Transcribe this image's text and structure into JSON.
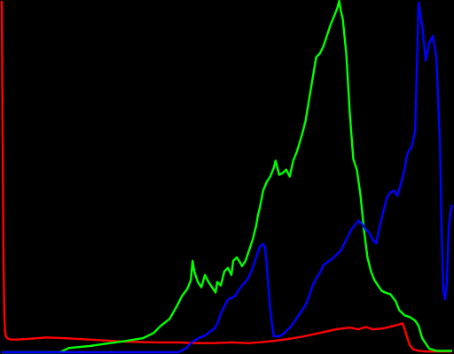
{
  "chart_data": {
    "type": "line",
    "title": "",
    "xlabel": "",
    "ylabel": "",
    "xlim": [
      0,
      255
    ],
    "ylim": [
      0,
      100
    ],
    "grid": false,
    "legend": "none",
    "background": "#000000",
    "series": [
      {
        "color": "#ff0000",
        "points": [
          [
            0,
            100
          ],
          [
            0.5,
            60
          ],
          [
            1,
            25
          ],
          [
            1.5,
            10
          ],
          [
            2,
            5
          ],
          [
            3,
            4
          ],
          [
            5,
            3.6
          ],
          [
            8,
            3.6
          ],
          [
            15,
            3.8
          ],
          [
            25,
            4.2
          ],
          [
            35,
            4
          ],
          [
            50,
            3.6
          ],
          [
            70,
            3
          ],
          [
            90,
            2.8
          ],
          [
            100,
            2.8
          ],
          [
            110,
            2.6
          ],
          [
            120,
            2.6
          ],
          [
            130,
            2.8
          ],
          [
            140,
            2.6
          ],
          [
            150,
            3
          ],
          [
            160,
            3.6
          ],
          [
            170,
            4.4
          ],
          [
            180,
            5.5
          ],
          [
            190,
            6.6
          ],
          [
            197,
            7
          ],
          [
            202,
            6.5
          ],
          [
            206,
            7.2
          ],
          [
            210,
            6.5
          ],
          [
            216,
            6.8
          ],
          [
            222,
            7.5
          ],
          [
            227,
            8.2
          ],
          [
            229,
            5
          ],
          [
            231,
            2
          ],
          [
            233,
            0.8
          ],
          [
            236,
            0.4
          ],
          [
            240,
            0.2
          ],
          [
            255,
            0.2
          ]
        ]
      },
      {
        "color": "#00ff00",
        "points": [
          [
            0,
            0
          ],
          [
            33,
            0
          ],
          [
            38,
            1.2
          ],
          [
            42,
            1.4
          ],
          [
            50,
            1.8
          ],
          [
            60,
            2.5
          ],
          [
            70,
            3.2
          ],
          [
            80,
            4
          ],
          [
            86,
            5.5
          ],
          [
            90,
            7.5
          ],
          [
            95,
            9.5
          ],
          [
            99,
            13
          ],
          [
            102,
            16
          ],
          [
            105,
            18
          ],
          [
            107,
            20.5
          ],
          [
            108,
            26
          ],
          [
            109,
            23
          ],
          [
            111,
            20
          ],
          [
            113,
            18.5
          ],
          [
            115,
            22
          ],
          [
            117,
            20
          ],
          [
            119,
            18.5
          ],
          [
            121,
            17
          ],
          [
            122,
            20
          ],
          [
            124,
            19
          ],
          [
            126,
            23
          ],
          [
            128,
            24
          ],
          [
            130,
            22
          ],
          [
            131,
            26
          ],
          [
            133,
            27
          ],
          [
            135,
            25.5
          ],
          [
            136,
            24.5
          ],
          [
            138,
            26
          ],
          [
            140,
            29
          ],
          [
            142,
            32
          ],
          [
            144,
            36
          ],
          [
            145,
            39
          ],
          [
            146,
            41
          ],
          [
            148,
            46
          ],
          [
            150,
            48.5
          ],
          [
            152,
            50
          ],
          [
            154,
            52.5
          ],
          [
            155,
            54.5
          ],
          [
            157,
            50.5
          ],
          [
            159,
            51
          ],
          [
            161,
            52
          ],
          [
            163,
            50
          ],
          [
            165,
            54.5
          ],
          [
            167,
            57
          ],
          [
            170,
            62
          ],
          [
            172,
            66
          ],
          [
            174,
            72
          ],
          [
            176,
            78
          ],
          [
            178,
            84
          ],
          [
            180,
            85
          ],
          [
            182,
            87
          ],
          [
            184,
            90
          ],
          [
            186,
            93
          ],
          [
            188,
            95.5
          ],
          [
            190,
            98
          ],
          [
            191,
            100
          ],
          [
            192,
            97
          ],
          [
            193,
            95
          ],
          [
            195,
            85
          ],
          [
            197,
            68
          ],
          [
            199,
            55
          ],
          [
            201,
            52
          ],
          [
            203,
            45
          ],
          [
            205,
            35
          ],
          [
            207,
            27
          ],
          [
            209,
            23
          ],
          [
            211,
            20.5
          ],
          [
            213,
            19
          ],
          [
            215,
            17.5
          ],
          [
            217,
            17
          ],
          [
            220,
            16.5
          ],
          [
            223,
            14.5
          ],
          [
            225,
            12
          ],
          [
            228,
            10.5
          ],
          [
            231,
            10
          ],
          [
            234,
            9
          ],
          [
            236,
            7.5
          ],
          [
            238,
            4
          ],
          [
            240,
            2.5
          ],
          [
            242,
            1
          ],
          [
            246,
            0.4
          ],
          [
            255,
            0.4
          ]
        ]
      },
      {
        "color": "#0000ff",
        "points": [
          [
            0,
            0
          ],
          [
            100,
            0
          ],
          [
            104,
            1
          ],
          [
            108,
            3
          ],
          [
            112,
            4.2
          ],
          [
            114,
            4.5
          ],
          [
            116,
            5
          ],
          [
            118,
            6
          ],
          [
            120,
            6.5
          ],
          [
            122,
            8
          ],
          [
            124,
            11
          ],
          [
            126,
            13
          ],
          [
            128,
            15
          ],
          [
            130,
            15.5
          ],
          [
            132,
            16
          ],
          [
            134,
            17.5
          ],
          [
            136,
            19
          ],
          [
            138,
            20
          ],
          [
            140,
            21.5
          ],
          [
            142,
            24
          ],
          [
            144,
            27
          ],
          [
            146,
            30
          ],
          [
            148,
            30.8
          ],
          [
            149,
            30
          ],
          [
            150,
            25
          ],
          [
            151,
            18
          ],
          [
            152,
            12
          ],
          [
            153,
            8
          ],
          [
            154,
            4.5
          ],
          [
            156,
            4.5
          ],
          [
            158,
            4.7
          ],
          [
            160,
            5.5
          ],
          [
            162,
            6.5
          ],
          [
            164,
            7.5
          ],
          [
            166,
            9
          ],
          [
            168,
            10.5
          ],
          [
            170,
            12
          ],
          [
            172,
            13.5
          ],
          [
            174,
            16
          ],
          [
            176,
            19
          ],
          [
            178,
            21
          ],
          [
            180,
            22.5
          ],
          [
            182,
            24.8
          ],
          [
            184,
            25.5
          ],
          [
            186,
            26.2
          ],
          [
            188,
            27
          ],
          [
            190,
            28
          ],
          [
            192,
            29
          ],
          [
            194,
            31
          ],
          [
            196,
            33
          ],
          [
            198,
            35
          ],
          [
            200,
            36.2
          ],
          [
            202,
            37.5
          ],
          [
            204,
            36.5
          ],
          [
            206,
            35
          ],
          [
            208,
            34
          ],
          [
            210,
            32
          ],
          [
            212,
            31
          ],
          [
            214,
            36
          ],
          [
            216,
            40
          ],
          [
            218,
            44
          ],
          [
            220,
            45.5
          ],
          [
            222,
            46
          ],
          [
            224,
            44.5
          ],
          [
            226,
            48
          ],
          [
            228,
            52
          ],
          [
            229,
            55
          ],
          [
            230,
            57
          ],
          [
            232,
            58.5
          ],
          [
            234,
            63
          ],
          [
            236,
            99.5
          ],
          [
            238,
            93
          ],
          [
            240,
            83
          ],
          [
            242,
            88
          ],
          [
            244,
            90
          ],
          [
            246,
            84
          ],
          [
            248,
            60
          ],
          [
            249,
            35
          ],
          [
            250,
            17.5
          ],
          [
            251,
            15
          ],
          [
            252,
            20
          ],
          [
            253,
            35
          ],
          [
            254,
            40
          ],
          [
            255,
            42
          ]
        ]
      }
    ]
  }
}
